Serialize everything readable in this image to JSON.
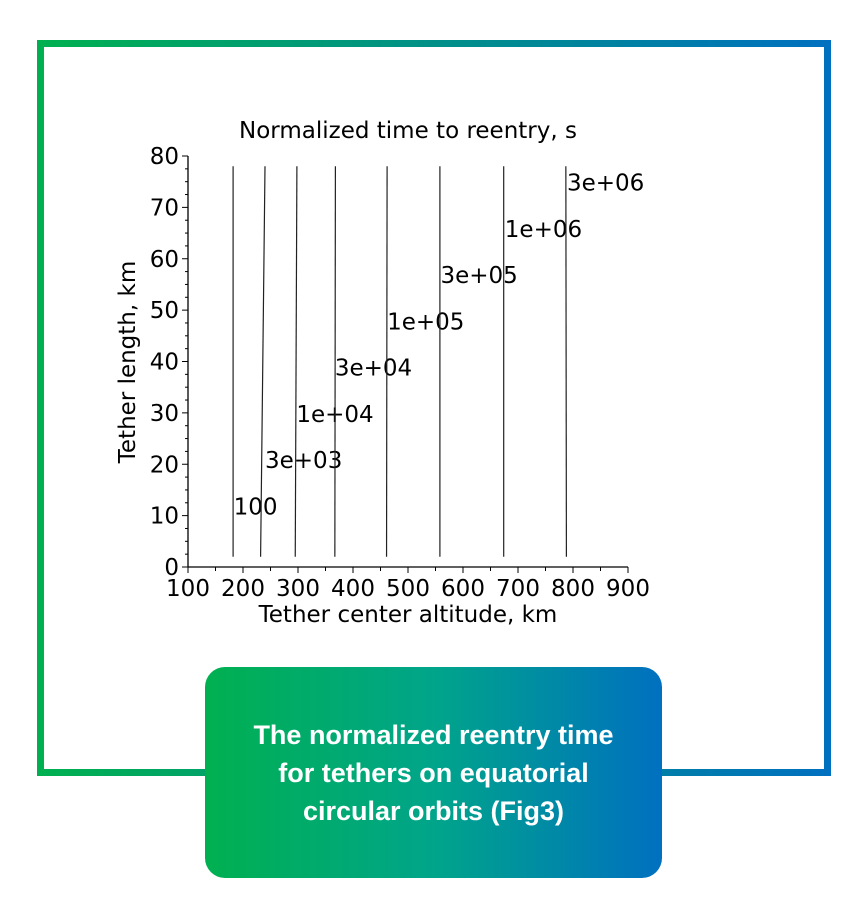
{
  "chart_data": {
    "type": "line",
    "subtype": "contour",
    "title": "Normalized time to reentry, s",
    "xlabel": "Tether center altitude, km",
    "ylabel": "Tether length, km",
    "xlim": [
      100,
      900
    ],
    "ylim": [
      0,
      80
    ],
    "xticks": [
      "100",
      "200",
      "300",
      "400",
      "500",
      "600",
      "700",
      "800",
      "900"
    ],
    "yticks": [
      "0",
      "10",
      "20",
      "30",
      "40",
      "50",
      "60",
      "70",
      "80"
    ],
    "grid": false,
    "series": [
      {
        "name": "100",
        "x": [
          182,
          182
        ],
        "y": [
          2,
          78
        ],
        "label_at": [
          183,
          12
        ]
      },
      {
        "name": "3e+03",
        "x": [
          232,
          240
        ],
        "y": [
          2,
          78
        ],
        "label_at": [
          240,
          21
        ]
      },
      {
        "name": "1e+04",
        "x": [
          295,
          298
        ],
        "y": [
          2,
          78
        ],
        "label_at": [
          297,
          30
        ]
      },
      {
        "name": "3e+04",
        "x": [
          367,
          368
        ],
        "y": [
          2,
          78
        ],
        "label_at": [
          367,
          39
        ]
      },
      {
        "name": "1e+05",
        "x": [
          461,
          462
        ],
        "y": [
          2,
          78
        ],
        "label_at": [
          462,
          48
        ]
      },
      {
        "name": "3e+05",
        "x": [
          558,
          558
        ],
        "y": [
          2,
          78
        ],
        "label_at": [
          559,
          57
        ]
      },
      {
        "name": "1e+06",
        "x": [
          674,
          674
        ],
        "y": [
          2,
          78
        ],
        "label_at": [
          676,
          66
        ]
      },
      {
        "name": "3e+06",
        "x": [
          788,
          787
        ],
        "y": [
          2,
          78
        ],
        "label_at": [
          789,
          75
        ]
      }
    ]
  },
  "caption": "The normalized reentry time for tethers on equatorial circular orbits (Fig3)",
  "colors": {
    "gradient_start": "#00b050",
    "gradient_end": "#0070c0"
  }
}
